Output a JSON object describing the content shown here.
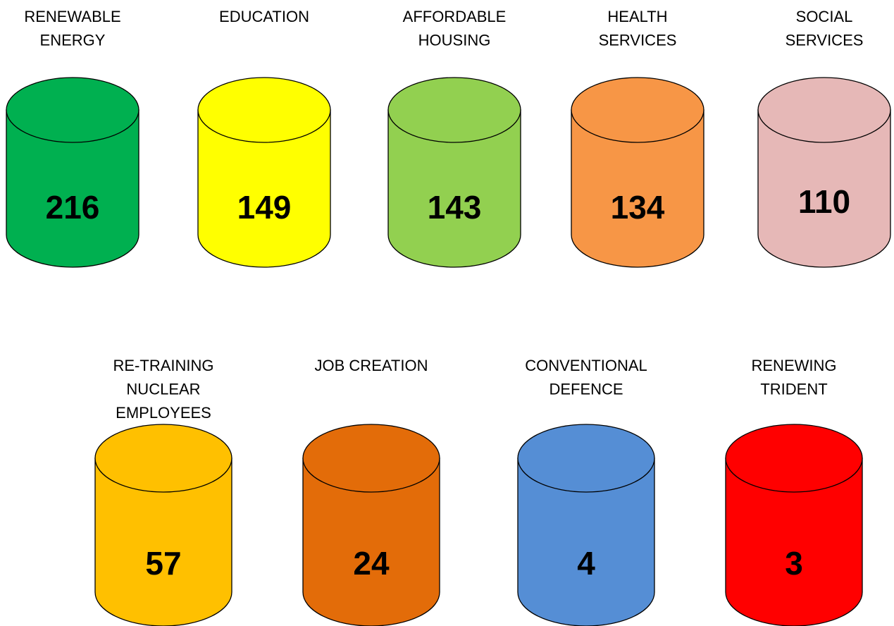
{
  "items": [
    {
      "label": [
        "RENEWABLE",
        "ENERGY"
      ],
      "value": 216,
      "color": "#00b050"
    },
    {
      "label": [
        "EDUCATION"
      ],
      "value": 149,
      "color": "#ffff00"
    },
    {
      "label": [
        "AFFORDABLE",
        "HOUSING"
      ],
      "value": 143,
      "color": "#92d050"
    },
    {
      "label": [
        "HEALTH",
        "SERVICES"
      ],
      "value": 134,
      "color": "#f79646"
    },
    {
      "label": [
        "SOCIAL",
        "SERVICES"
      ],
      "value": 110,
      "color": "#e6b8b7"
    },
    {
      "label": [
        "RE-TRAINING",
        "NUCLEAR",
        "EMPLOYEES"
      ],
      "value": 57,
      "color": "#ffc000"
    },
    {
      "label": [
        "JOB CREATION"
      ],
      "value": 24,
      "color": "#e36c09"
    },
    {
      "label": [
        "CONVENTIONAL",
        "DEFENCE"
      ],
      "value": 4,
      "color": "#558ed5"
    },
    {
      "label": [
        "RENEWING",
        "TRIDENT"
      ],
      "value": 3,
      "color": "#ff0000"
    }
  ]
}
